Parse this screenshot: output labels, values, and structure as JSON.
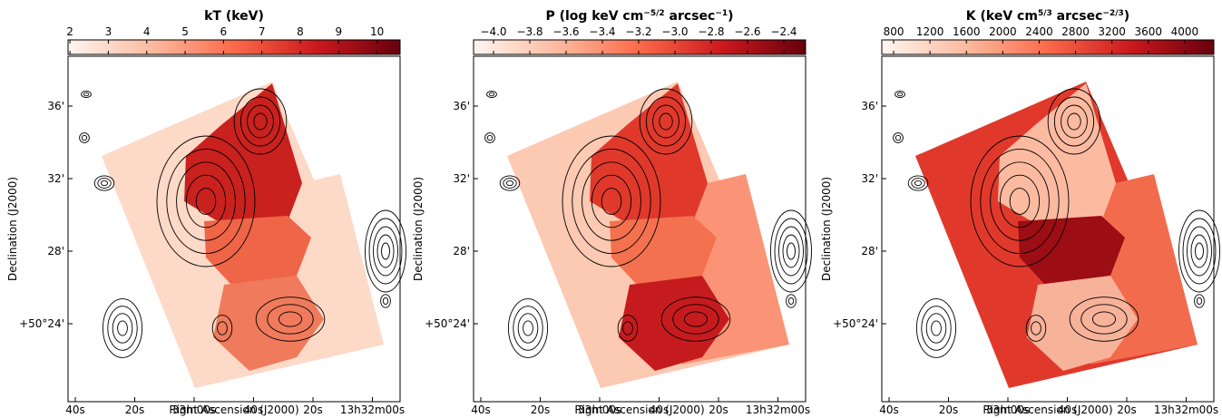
{
  "chart_data": [
    {
      "type": "image",
      "colorbar": {
        "label": [
          {
            "text": "kT (keV)"
          }
        ],
        "lim": [
          1.95,
          10.6
        ],
        "ticks": [
          2,
          3,
          4,
          5,
          6,
          7,
          8,
          9,
          10
        ]
      },
      "xlabel": "Right Ascension (J2000)",
      "ylabel": "Declination (J2000)",
      "xticklabels": [
        "40s",
        "20s",
        "33m00s",
        "40s",
        "20s",
        "13h32m00s"
      ],
      "yticklabels": [
        "36'",
        "32'",
        "28'",
        "+50°24'"
      ]
    },
    {
      "type": "image",
      "colorbar": {
        "label": [
          {
            "text": "P (log keV cm"
          },
          {
            "text": "−5/2",
            "sup": true
          },
          {
            "text": " arcsec"
          },
          {
            "text": "−1",
            "sup": true
          },
          {
            "text": ")"
          }
        ],
        "lim": [
          -4.11,
          -2.28
        ],
        "ticks": [
          {
            "value": -4.0,
            "label": "−4.0"
          },
          {
            "value": -3.8,
            "label": "−3.8"
          },
          {
            "value": -3.6,
            "label": "−3.6"
          },
          {
            "value": -3.4,
            "label": "−3.4"
          },
          {
            "value": -3.2,
            "label": "−3.2"
          },
          {
            "value": -3.0,
            "label": "−3.0"
          },
          {
            "value": -2.8,
            "label": "−2.8"
          },
          {
            "value": -2.6,
            "label": "−2.6"
          },
          {
            "value": -2.4,
            "label": "−2.4"
          }
        ]
      },
      "xlabel": "Right Ascension (J2000)",
      "ylabel": "Declination (J2000)",
      "xticklabels": [
        "40s",
        "20s",
        "33m00s",
        "40s",
        "20s",
        "13h32m00s"
      ],
      "yticklabels": [
        "36'",
        "32'",
        "28'",
        "+50°24'"
      ]
    },
    {
      "type": "image",
      "colorbar": {
        "label": [
          {
            "text": "K (keV cm"
          },
          {
            "text": "5/3",
            "sup": true
          },
          {
            "text": " arcsec"
          },
          {
            "text": "−2/3",
            "sup": true
          },
          {
            "text": ")"
          }
        ],
        "lim": [
          670,
          4320
        ],
        "ticks": [
          800,
          1200,
          1600,
          2000,
          2400,
          2800,
          3200,
          3600,
          4000
        ]
      },
      "xlabel": "Right Ascension (J2000)",
      "ylabel": "Declination (J2000)",
      "xticklabels": [
        "40s",
        "20s",
        "33m00s",
        "40s",
        "20s",
        "13h32m00s"
      ],
      "yticklabels": [
        "36'",
        "32'",
        "28'",
        "+50°24'"
      ]
    }
  ]
}
